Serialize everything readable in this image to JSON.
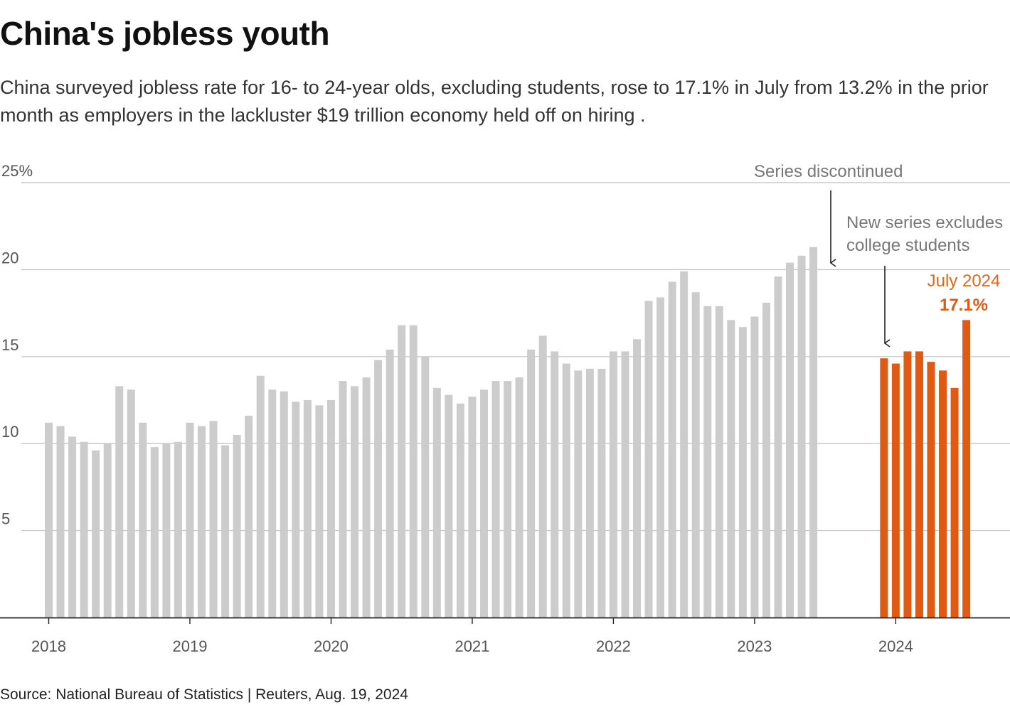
{
  "header": {
    "title": "China's jobless youth",
    "subtitle": "China surveyed jobless rate for 16- to 24-year olds, excluding students, rose to 17.1% in July from 13.2% in the prior month as employers in the lackluster $19 trillion economy held off on hiring ."
  },
  "footer": {
    "source": "Source: National Bureau of Statistics | Reuters, Aug. 19, 2024"
  },
  "annotations": {
    "discontinued": "Series discontinued",
    "new_series_line1": "New series excludes",
    "new_series_line2": "college students",
    "highlight_label": "July 2024",
    "highlight_value": "17.1%"
  },
  "colors": {
    "old_series": "#cccccc",
    "new_series": "#e05a14",
    "highlight_text": "#e8641b",
    "grid": "#c8c8c8",
    "axis": "#222222"
  },
  "chart_data": {
    "type": "bar",
    "y_tick_labels": [
      "25%",
      "20",
      "15",
      "10",
      "5"
    ],
    "y_ticks": [
      25,
      20,
      15,
      10,
      5
    ],
    "ylim": [
      0,
      25
    ],
    "x_tick_labels": [
      "2018",
      "2019",
      "2020",
      "2021",
      "2022",
      "2023",
      "2024"
    ],
    "series": [
      {
        "name": "",
        "color": "#cccccc",
        "start": "2018-01",
        "end": "2023-06",
        "values": [
          11.2,
          11.0,
          10.4,
          10.1,
          9.6,
          10.0,
          13.3,
          13.1,
          11.2,
          9.8,
          10.0,
          10.1,
          11.2,
          11.0,
          11.3,
          9.9,
          10.5,
          11.6,
          13.9,
          13.1,
          13.0,
          12.4,
          12.5,
          12.2,
          12.5,
          13.6,
          13.3,
          13.8,
          14.8,
          15.4,
          16.8,
          16.8,
          15.0,
          13.2,
          12.8,
          12.3,
          12.7,
          13.1,
          13.6,
          13.6,
          13.8,
          15.4,
          16.2,
          15.3,
          14.6,
          14.2,
          14.3,
          14.3,
          15.3,
          15.3,
          16.0,
          18.2,
          18.4,
          19.3,
          19.9,
          18.7,
          17.9,
          17.9,
          17.1,
          16.7,
          17.3,
          18.1,
          19.6,
          20.4,
          20.8,
          21.3
        ]
      },
      {
        "name": "",
        "color": "#e05a14",
        "start": "2023-12",
        "end": "2024-07",
        "values": [
          14.9,
          14.6,
          15.3,
          15.3,
          14.7,
          14.2,
          13.2,
          17.1
        ]
      }
    ]
  }
}
